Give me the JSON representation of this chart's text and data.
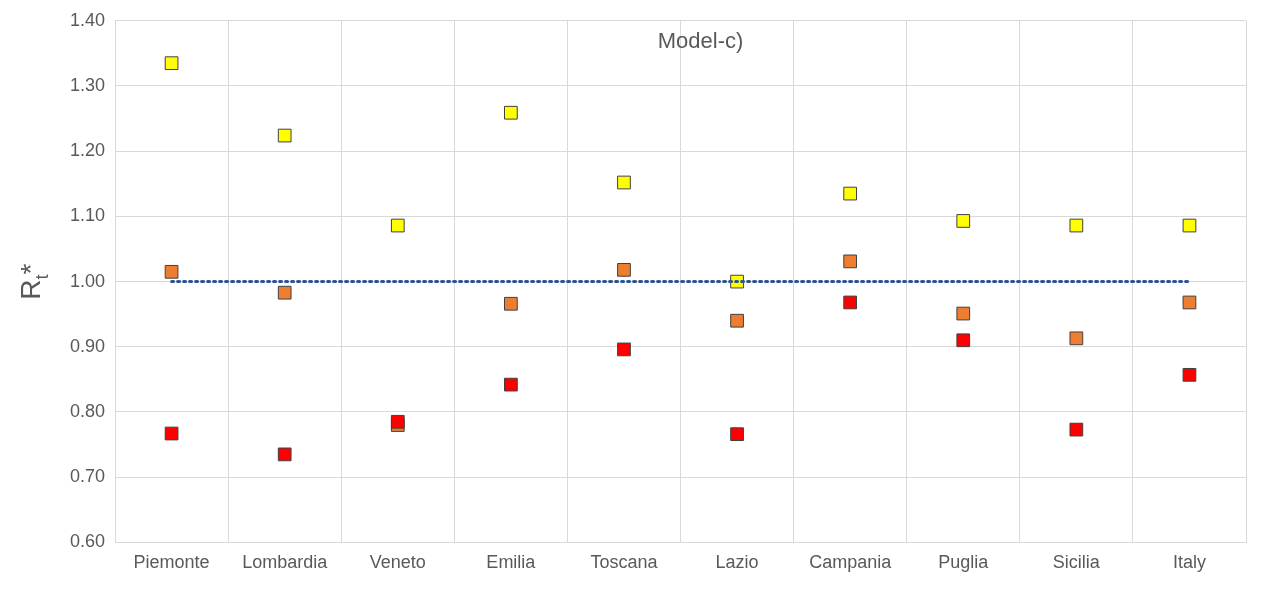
{
  "chart_data": {
    "type": "scatter",
    "title": "Model-c)",
    "ylabel": "R$_{t}$*",
    "categories": [
      "Piemonte",
      "Lombardia",
      "Veneto",
      "Emilia",
      "Toscana",
      "Lazio",
      "Campania",
      "Puglia",
      "Sicilia",
      "Italy"
    ],
    "series": [
      {
        "color": "#ffff00",
        "values": [
          1.335,
          1.224,
          1.086,
          1.259,
          1.152,
          1.0,
          1.135,
          1.093,
          1.086,
          1.086
        ]
      },
      {
        "color": "#ed7d31",
        "values": [
          1.015,
          0.983,
          0.78,
          0.966,
          1.018,
          0.94,
          1.031,
          0.951,
          0.913,
          0.968
        ]
      },
      {
        "color": "#ff0000",
        "values": [
          0.767,
          0.735,
          0.785,
          0.842,
          0.896,
          0.766,
          0.968,
          0.91,
          0.773,
          0.857
        ]
      }
    ],
    "ylim": [
      0.6,
      1.4
    ],
    "yticks": [
      {
        "value": 0.6,
        "label": "0.60"
      },
      {
        "value": 0.7,
        "label": "0.70"
      },
      {
        "value": 0.8,
        "label": "0.80"
      },
      {
        "value": 0.9,
        "label": "0.90"
      },
      {
        "value": 1.0,
        "label": "1.00"
      },
      {
        "value": 1.1,
        "label": "1.10"
      },
      {
        "value": 1.2,
        "label": "1.20"
      },
      {
        "value": 1.3,
        "label": "1.30"
      },
      {
        "value": 1.4,
        "label": "1.40"
      }
    ],
    "ref_lines": [
      {
        "axis": "y",
        "value": 1.0,
        "color": "#2f5597",
        "line_style": "dotted"
      }
    ],
    "grid": true,
    "legend": false,
    "marker": "square"
  }
}
